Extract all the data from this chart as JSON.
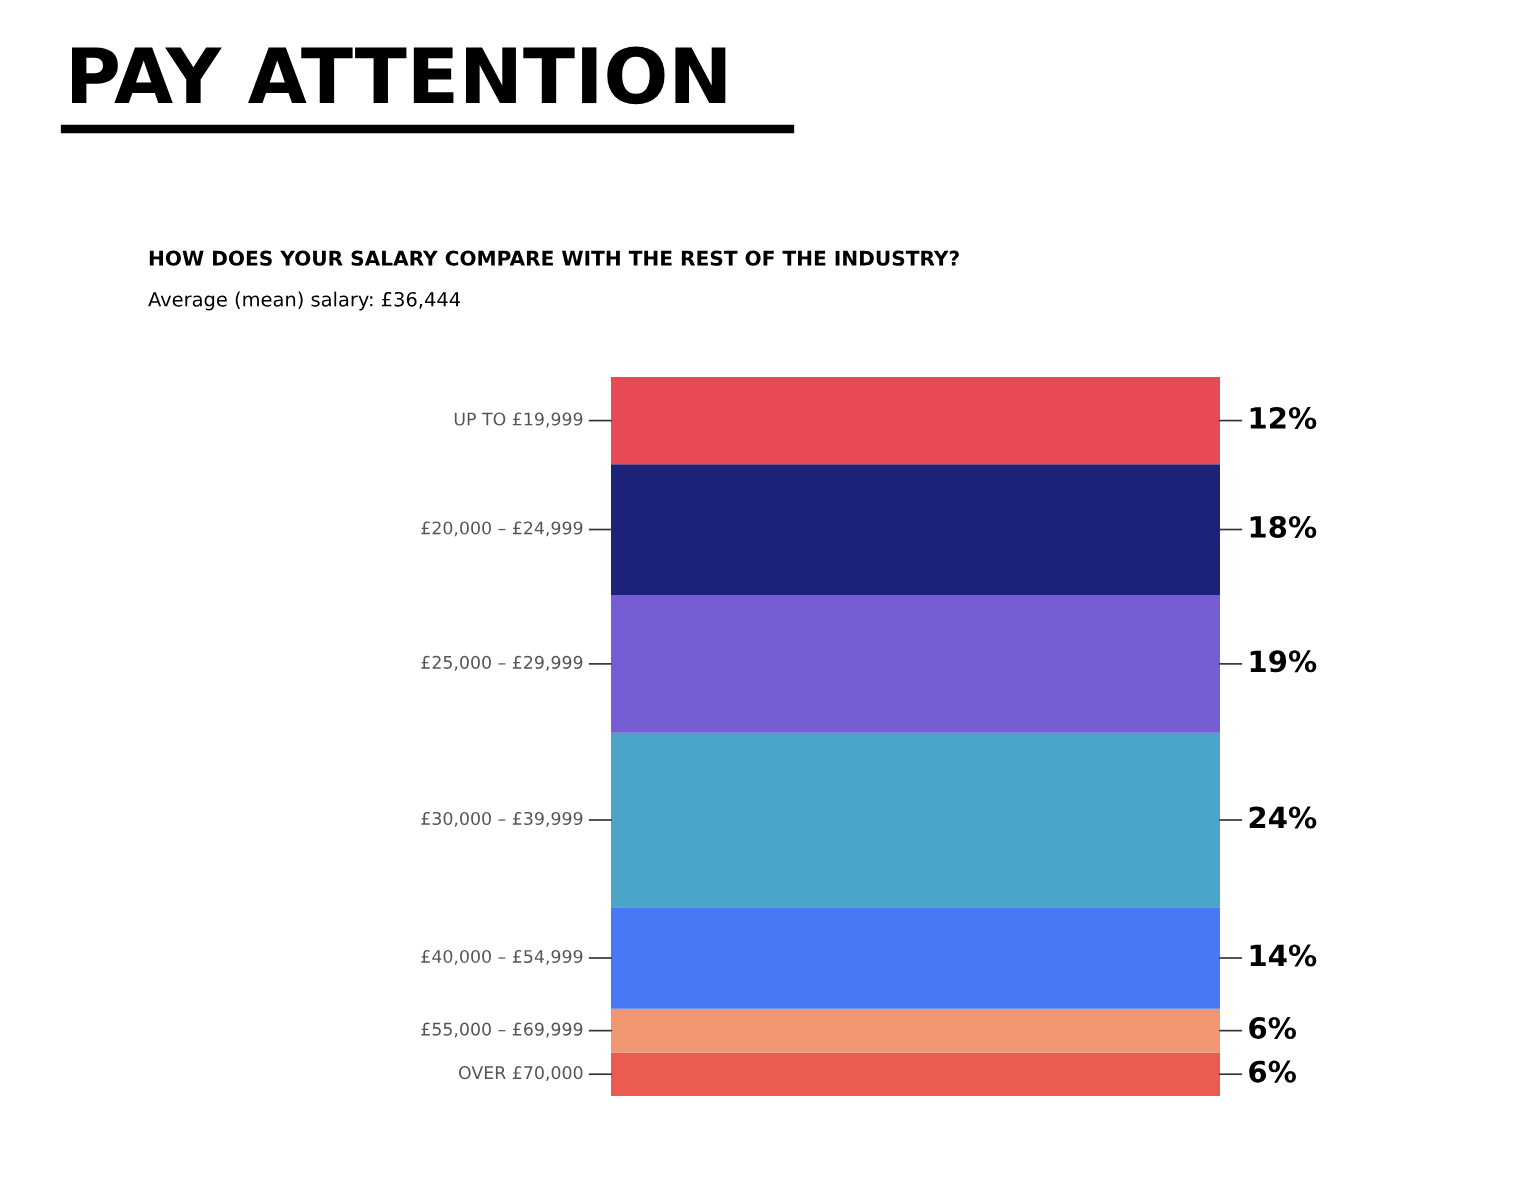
{
  "chart_data": {
    "type": "bar",
    "stacked": true,
    "title": "PAY ATTENTION",
    "subtitle": "HOW DOES YOUR SALARY COMPARE WITH THE REST OF THE INDUSTRY?",
    "annotations": [
      "Average (mean) salary: £36,444"
    ],
    "categories": [
      null
    ],
    "series": [
      {
        "name": "OVER £70,000",
        "color": "#eb5c50",
        "values": [
          6
        ],
        "value_labels": [
          "6%"
        ]
      },
      {
        "name": "£55,000 – £69,999",
        "color": "#f09670",
        "values": [
          6
        ],
        "value_labels": [
          "6%"
        ]
      },
      {
        "name": "£40,000 – £54,999",
        "color": "#4778f5",
        "values": [
          14
        ],
        "value_labels": [
          "14%"
        ]
      },
      {
        "name": "£30,000 – £39,999",
        "color": "#4ba5c9",
        "values": [
          24
        ],
        "value_labels": [
          "24%"
        ]
      },
      {
        "name": "£25,000 – £29,999",
        "color": "#765dd3",
        "values": [
          19
        ],
        "value_labels": [
          "19%"
        ]
      },
      {
        "name": "£20,000 – £24,999",
        "color": "#1c2278",
        "values": [
          18
        ],
        "value_labels": [
          "18%"
        ]
      },
      {
        "name": "UP TO £19,999",
        "color": "#e84a55",
        "values": [
          12
        ],
        "value_labels": [
          "12%"
        ]
      }
    ],
    "legend": false
  }
}
